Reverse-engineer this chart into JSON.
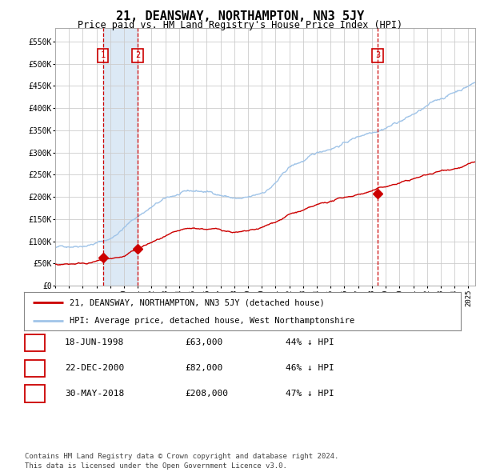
{
  "title": "21, DEANSWAY, NORTHAMPTON, NN3 5JY",
  "subtitle": "Price paid vs. HM Land Registry's House Price Index (HPI)",
  "title_fontsize": 11,
  "subtitle_fontsize": 8.5,
  "bg_color": "#ffffff",
  "plot_bg_color": "#ffffff",
  "grid_color": "#cccccc",
  "hpi_line_color": "#a0c4e8",
  "price_line_color": "#cc0000",
  "sale_marker_color": "#cc0000",
  "dashed_line_color": "#cc0000",
  "shade_color": "#dce9f5",
  "ylim": [
    0,
    580000
  ],
  "yticks": [
    0,
    50000,
    100000,
    150000,
    200000,
    250000,
    300000,
    350000,
    400000,
    450000,
    500000,
    550000
  ],
  "ytick_labels": [
    "£0",
    "£50K",
    "£100K",
    "£150K",
    "£200K",
    "£250K",
    "£300K",
    "£350K",
    "£400K",
    "£450K",
    "£500K",
    "£550K"
  ],
  "xlim_start": 1995.0,
  "xlim_end": 2025.5,
  "sale_dates": [
    1998.46,
    2000.98,
    2018.41
  ],
  "sale_prices": [
    63000,
    82000,
    208000
  ],
  "sale_labels": [
    "1",
    "2",
    "3"
  ],
  "shade_x1": 1998.46,
  "shade_x2": 2000.98,
  "legend_items": [
    {
      "label": "21, DEANSWAY, NORTHAMPTON, NN3 5JY (detached house)",
      "color": "#cc0000"
    },
    {
      "label": "HPI: Average price, detached house, West Northamptonshire",
      "color": "#a0c4e8"
    }
  ],
  "table_rows": [
    {
      "num": "1",
      "date": "18-JUN-1998",
      "price": "£63,000",
      "hpi": "44% ↓ HPI"
    },
    {
      "num": "2",
      "date": "22-DEC-2000",
      "price": "£82,000",
      "hpi": "46% ↓ HPI"
    },
    {
      "num": "3",
      "date": "30-MAY-2018",
      "price": "£208,000",
      "hpi": "47% ↓ HPI"
    }
  ],
  "footnote": "Contains HM Land Registry data © Crown copyright and database right 2024.\nThis data is licensed under the Open Government Licence v3.0.",
  "footnote_fontsize": 6.5
}
